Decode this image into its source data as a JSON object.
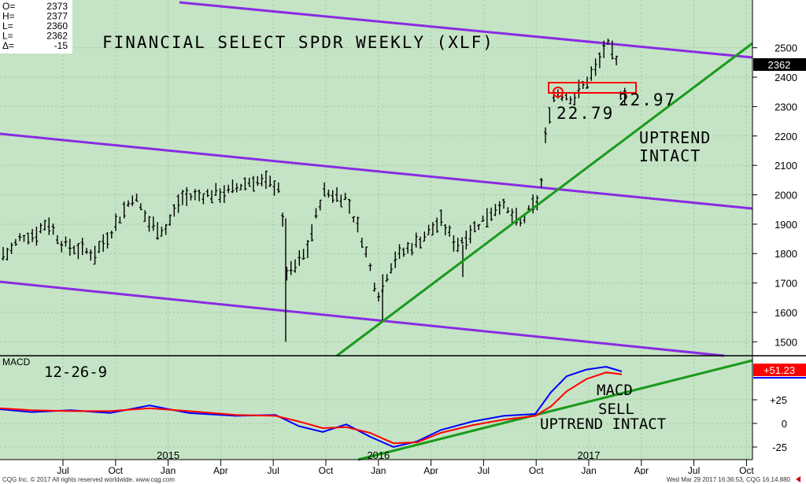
{
  "chart_data": [
    {
      "type": "ohlc",
      "title": "FINANCIAL SELECT SPDR WEEKLY (XLF)",
      "ylim": [
        1450,
        2550
      ],
      "y_ticks": [
        1500,
        1600,
        1700,
        1800,
        1900,
        2000,
        2100,
        2200,
        2300,
        2400,
        2500
      ],
      "last_value": "2362",
      "ohlc_box": [
        {
          "label": "O=",
          "value": "2373"
        },
        {
          "label": "H=",
          "value": "2377"
        },
        {
          "label": "L=",
          "value": "2360"
        },
        {
          "label": "L=",
          "value": "2362"
        },
        {
          "label": "Δ=",
          "value": "-15"
        }
      ],
      "x_ticks": [
        {
          "label": "Jul",
          "year": null
        },
        {
          "label": "Oct",
          "year": null
        },
        {
          "label": "Jan",
          "year": "2015"
        },
        {
          "label": "Apr",
          "year": null
        },
        {
          "label": "Jul",
          "year": null
        },
        {
          "label": "Oct",
          "year": null
        },
        {
          "label": "Jan",
          "year": "2016"
        },
        {
          "label": "Apr",
          "year": null
        },
        {
          "label": "Jul",
          "year": null
        },
        {
          "label": "Oct",
          "year": null
        },
        {
          "label": "Jan",
          "year": "2017"
        },
        {
          "label": "Apr",
          "year": null
        },
        {
          "label": "Jul",
          "year": null
        },
        {
          "label": "Oct",
          "year": null
        }
      ],
      "annotations": {
        "low1": "22.79",
        "low2": "22.97",
        "uptrend1": "UPTREND",
        "uptrend2": "INTACT"
      },
      "colors": {
        "background": "#c5e3c5",
        "channel": "#8a2be2",
        "trendline": "#1a9a1a",
        "box": "#ff0000",
        "bars": "#000000"
      }
    },
    {
      "type": "line",
      "title": "MACD",
      "subtitle": "12-26-9",
      "ylim": [
        -30,
        65
      ],
      "y_ticks": [
        {
          "value": 25,
          "label": "+25"
        },
        {
          "value": 0,
          "label": "0"
        },
        {
          "value": -25,
          "label": "-25"
        }
      ],
      "last_value": "+51.23",
      "series": [
        {
          "color": "#0000ff"
        },
        {
          "color": "#ff0000"
        }
      ],
      "annotations": {
        "macd1": "MACD",
        "macd2": "SELL",
        "uptrend": "UPTREND INTACT"
      }
    }
  ],
  "footer": {
    "left": "CQG Inc. © 2017 All rights reserved worldwide. www.cqg.com",
    "right": "Wed Mar 29 2017 16:36:53, CQG 16.14.880"
  }
}
